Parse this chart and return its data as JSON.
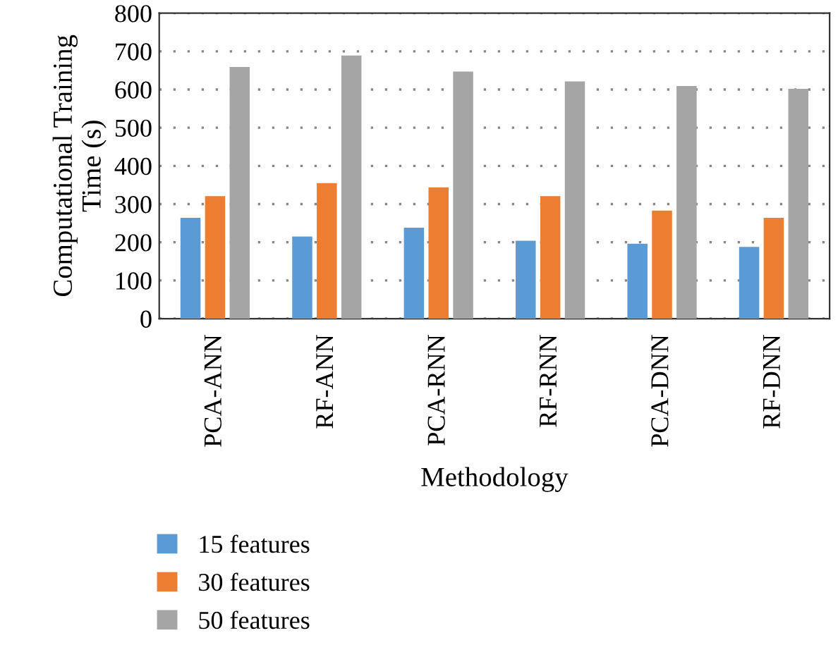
{
  "chart_data": {
    "type": "bar",
    "xlabel": "Methodology",
    "ylabel": "Computational Training\nTime (s)",
    "categories": [
      "PCA-ANN",
      "RF-ANN",
      "PCA-RNN",
      "RF-RNN",
      "PCA-DNN",
      "RF-DNN"
    ],
    "series": [
      {
        "name": "15 features",
        "color": "#5b9bd5",
        "values": [
          264,
          215,
          238,
          204,
          196,
          188
        ]
      },
      {
        "name": "30 features",
        "color": "#ed7d31",
        "values": [
          321,
          355,
          344,
          321,
          283,
          264
        ]
      },
      {
        "name": "50 features",
        "color": "#a5a5a5",
        "values": [
          659,
          689,
          647,
          621,
          609,
          602
        ]
      }
    ],
    "ylim": [
      0,
      800
    ],
    "yticks": [
      0,
      100,
      200,
      300,
      400,
      500,
      600,
      700,
      800
    ],
    "grid": "y",
    "legend": "bottom"
  }
}
